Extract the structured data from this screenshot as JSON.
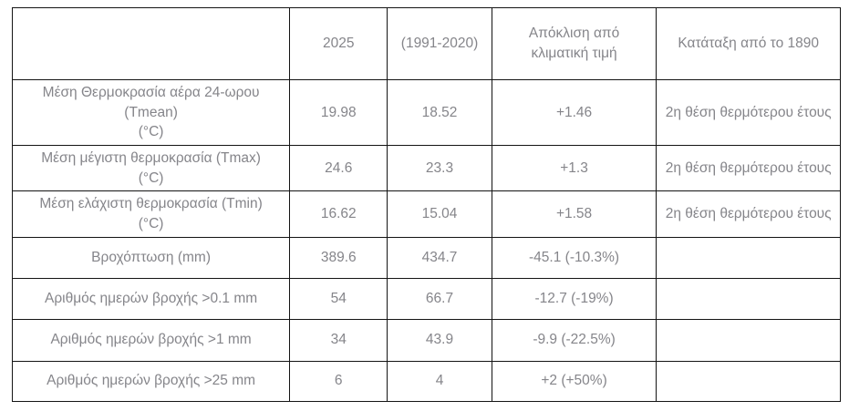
{
  "colors": {
    "border": "#141414",
    "text": "#85858a",
    "background": "#ffffff"
  },
  "chart_data": {
    "type": "table",
    "columns": [
      "",
      "2025",
      "(1991-2020)",
      "Απόκλιση από κλιματική τιμή",
      "Κατάταξη από το 1890"
    ],
    "rows": [
      [
        "Μέση Θερμοκρασία αέρα 24-ωρου\n(Tmean)\n(°C)",
        "19.98",
        "18.52",
        "+1.46",
        "2η θέση θερμότερου έτους"
      ],
      [
        "Μέση μέγιστη θερμοκρασία (Tmax)\n(°C)",
        "24.6",
        "23.3",
        "+1.3",
        "2η θέση θερμότερου έτους"
      ],
      [
        "Μέση ελάχιστη θερμοκρασία (Tmin)\n(°C)",
        "16.62",
        "15.04",
        "+1.58",
        "2η θέση θερμότερου έτους"
      ],
      [
        "Βροχόπτωση (mm)",
        "389.6",
        "434.7",
        "-45.1 (-10.3%)",
        ""
      ],
      [
        "Αριθμός ημερών βροχής >0.1 mm",
        "54",
        "66.7",
        "-12.7 (-19%)",
        ""
      ],
      [
        "Αριθμός ημερών βροχής >1 mm",
        "34",
        "43.9",
        "-9.9 (-22.5%)",
        ""
      ],
      [
        "Αριθμός ημερών βροχής >25 mm",
        "6",
        "4",
        "+2 (+50%)",
        ""
      ]
    ]
  }
}
